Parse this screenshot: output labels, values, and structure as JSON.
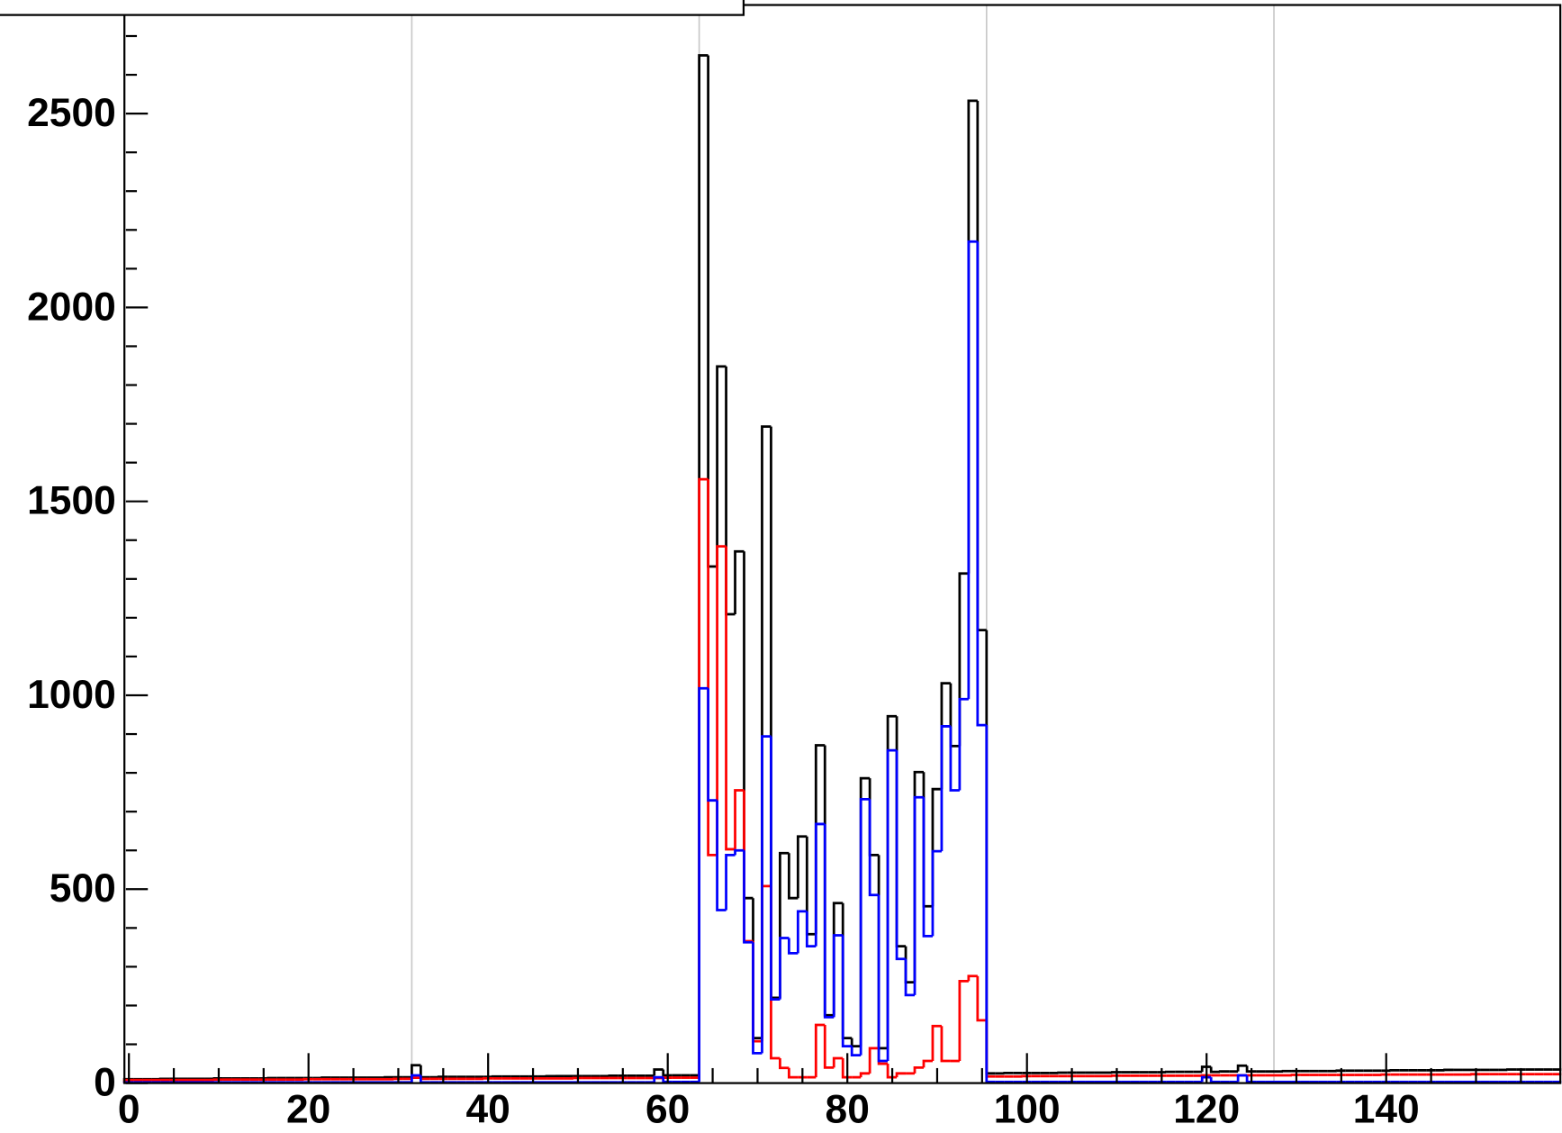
{
  "chart_data": {
    "type": "histogram",
    "bins": [
      -0.5,
      0.5,
      1.5,
      2.5,
      3.5,
      4.5,
      5.5,
      6.5,
      7.5,
      8.5,
      9.5,
      10.5,
      11.5,
      12.5,
      13.5,
      14.5,
      15.5,
      16.5,
      17.5,
      18.5,
      19.5,
      20.5,
      21.5,
      22.5,
      23.5,
      24.5,
      25.5,
      26.5,
      27.5,
      28.5,
      29.5,
      30.5,
      31.5,
      32.5,
      33.5,
      34.5,
      35.5,
      36.5,
      37.5,
      38.5,
      39.5,
      40.5,
      41.5,
      42.5,
      43.5,
      44.5,
      45.5,
      46.5,
      47.5,
      48.5,
      49.5,
      50.5,
      51.5,
      52.5,
      53.5,
      54.5,
      55.5,
      56.5,
      57.5,
      58.5,
      59.5,
      60.5,
      61.5,
      62.5,
      63.5,
      64.5,
      65.5,
      66.5,
      67.5,
      68.5,
      69.5,
      70.5,
      71.5,
      72.5,
      73.5,
      74.5,
      75.5,
      76.5,
      77.5,
      78.5,
      79.5,
      80.5,
      81.5,
      82.5,
      83.5,
      84.5,
      85.5,
      86.5,
      87.5,
      88.5,
      89.5,
      90.5,
      91.5,
      92.5,
      93.5,
      94.5,
      95.5,
      96.5,
      97.5,
      98.5,
      99.5,
      100.5,
      101.5,
      102.5,
      103.5,
      104.5,
      105.5,
      106.5,
      107.5,
      108.5,
      109.5,
      110.5,
      111.5,
      112.5,
      113.5,
      114.5,
      115.5,
      116.5,
      117.5,
      118.5,
      119.5,
      120.5,
      121.5,
      122.5,
      123.5,
      124.5,
      125.5,
      126.5,
      127.5,
      128.5,
      129.5,
      130.5,
      131.5,
      132.5,
      133.5,
      134.5,
      135.5,
      136.5,
      137.5,
      138.5,
      139.5,
      140.5,
      141.5,
      142.5,
      143.5,
      144.5,
      145.5,
      146.5,
      147.5,
      148.5,
      149.5,
      150.5,
      151.5,
      152.5,
      153.5,
      154.5,
      155.5,
      156.5,
      157.5,
      158.5,
      159.5
    ],
    "series": [
      {
        "color": "#000000",
        "values": [
          10,
          10,
          10,
          10,
          11,
          11,
          11,
          11,
          11,
          11,
          12,
          12,
          12,
          12,
          12,
          12,
          13,
          13,
          13,
          13,
          13,
          13,
          14,
          14,
          14,
          14,
          14,
          14,
          14,
          15,
          15,
          15,
          46,
          15,
          15,
          16,
          16,
          16,
          16,
          16,
          16,
          17,
          17,
          17,
          17,
          17,
          17,
          18,
          18,
          18,
          18,
          18,
          18,
          18,
          19,
          19,
          19,
          19,
          19,
          35,
          20,
          20,
          20,
          20,
          2650,
          1332,
          1848,
          1209,
          1371,
          477,
          116,
          1693,
          220,
          593,
          477,
          636,
          384,
          871,
          175,
          464,
          116,
          95,
          786,
          588,
          90,
          946,
          353,
          260,
          802,
          456,
          758,
          1031,
          869,
          1314,
          2533,
          1168,
          25,
          25,
          26,
          26,
          26,
          26,
          26,
          26,
          27,
          27,
          27,
          27,
          27,
          27,
          28,
          28,
          28,
          28,
          28,
          28,
          29,
          29,
          29,
          29,
          42,
          29,
          30,
          30,
          45,
          30,
          30,
          30,
          30,
          31,
          31,
          31,
          31,
          31,
          31,
          32,
          32,
          32,
          32,
          32,
          32,
          33,
          33,
          33,
          33,
          33,
          33,
          34,
          34,
          34,
          34,
          34,
          34,
          34,
          35,
          35,
          35,
          35,
          35,
          35
        ]
      },
      {
        "color": "#ff0000",
        "values": [
          8,
          8,
          8,
          8,
          8,
          8,
          8,
          8,
          8,
          8,
          9,
          9,
          9,
          9,
          9,
          9,
          9,
          9,
          9,
          9,
          10,
          10,
          10,
          10,
          10,
          10,
          10,
          10,
          10,
          10,
          11,
          11,
          14,
          11,
          11,
          11,
          11,
          11,
          11,
          11,
          12,
          12,
          12,
          12,
          12,
          12,
          12,
          12,
          12,
          12,
          13,
          13,
          13,
          13,
          13,
          13,
          13,
          13,
          13,
          13,
          14,
          14,
          14,
          14,
          1557,
          588,
          1384,
          603,
          755,
          366,
          108,
          508,
          64,
          39,
          15,
          15,
          15,
          150,
          40,
          64,
          15,
          15,
          25,
          90,
          50,
          15,
          25,
          25,
          40,
          57,
          147,
          57,
          57,
          263,
          276,
          162,
          17,
          17,
          17,
          17,
          18,
          18,
          18,
          18,
          18,
          18,
          18,
          18,
          18,
          18,
          19,
          19,
          19,
          19,
          19,
          19,
          19,
          19,
          19,
          19,
          20,
          20,
          20,
          20,
          20,
          20,
          20,
          20,
          20,
          20,
          21,
          21,
          21,
          21,
          21,
          21,
          21,
          21,
          21,
          21,
          22,
          22,
          22,
          22,
          22,
          22,
          22,
          22,
          22,
          22,
          23,
          23,
          23,
          23,
          23,
          23,
          23,
          23,
          23,
          23
        ]
      },
      {
        "color": "#0000ff",
        "values": [
          2,
          2,
          2,
          2,
          2,
          2,
          2,
          2,
          2,
          2,
          2,
          2,
          2,
          2,
          2,
          2,
          2,
          2,
          2,
          2,
          2,
          2,
          2,
          2,
          2,
          2,
          2,
          2,
          2,
          2,
          2,
          2,
          20,
          2,
          2,
          2,
          2,
          2,
          2,
          2,
          2,
          2,
          2,
          2,
          2,
          2,
          2,
          2,
          2,
          2,
          2,
          2,
          2,
          2,
          2,
          2,
          2,
          2,
          2,
          15,
          3,
          3,
          3,
          3,
          1018,
          729,
          446,
          588,
          600,
          363,
          77,
          894,
          216,
          374,
          335,
          443,
          353,
          668,
          170,
          381,
          95,
          72,
          732,
          485,
          57,
          858,
          320,
          227,
          737,
          379,
          598,
          920,
          755,
          990,
          2170,
          923,
          3,
          3,
          3,
          3,
          3,
          3,
          3,
          3,
          3,
          3,
          3,
          3,
          3,
          3,
          3,
          3,
          3,
          3,
          3,
          3,
          3,
          3,
          3,
          3,
          15,
          3,
          3,
          3,
          20,
          3,
          3,
          3,
          3,
          3,
          3,
          3,
          3,
          3,
          3,
          3,
          3,
          3,
          3,
          3,
          3,
          3,
          3,
          3,
          3,
          3,
          3,
          3,
          3,
          3,
          3,
          3,
          3,
          3,
          3,
          3,
          3,
          3,
          3,
          3
        ]
      }
    ],
    "xlim": [
      -0.5,
      159.5
    ],
    "xticks": [
      0,
      20,
      40,
      60,
      80,
      100,
      120,
      140
    ],
    "xminorticks": [
      5,
      10,
      15,
      25,
      30,
      35,
      45,
      50,
      55,
      65,
      70,
      75,
      85,
      90,
      95,
      105,
      110,
      115,
      125,
      130,
      135,
      145,
      150,
      155
    ],
    "xgrid": [
      31.5,
      63.5,
      95.5,
      127.5
    ],
    "ylim": [
      0,
      2780
    ],
    "yticks": [
      0,
      500,
      1000,
      1500,
      2000,
      2500
    ],
    "yminorticks": [
      100,
      200,
      300,
      400,
      600,
      700,
      800,
      900,
      1100,
      1200,
      1300,
      1400,
      1600,
      1700,
      1800,
      1900,
      2100,
      2200,
      2300,
      2400,
      2600,
      2700
    ]
  }
}
